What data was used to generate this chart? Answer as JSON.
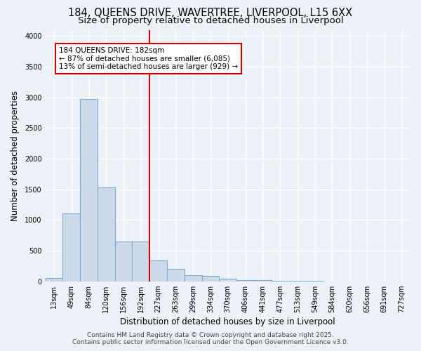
{
  "title_line1": "184, QUEENS DRIVE, WAVERTREE, LIVERPOOL, L15 6XX",
  "title_line2": "Size of property relative to detached houses in Liverpool",
  "xlabel": "Distribution of detached houses by size in Liverpool",
  "ylabel": "Number of detached properties",
  "categories": [
    "13sqm",
    "49sqm",
    "84sqm",
    "120sqm",
    "156sqm",
    "192sqm",
    "227sqm",
    "263sqm",
    "299sqm",
    "334sqm",
    "370sqm",
    "406sqm",
    "441sqm",
    "477sqm",
    "513sqm",
    "549sqm",
    "584sqm",
    "620sqm",
    "656sqm",
    "691sqm",
    "727sqm"
  ],
  "values": [
    55,
    1110,
    2970,
    1530,
    650,
    650,
    340,
    205,
    105,
    90,
    40,
    25,
    15,
    10,
    5,
    3,
    2,
    1,
    1,
    0,
    0
  ],
  "bar_color": "#ccd9e8",
  "bar_edge_color": "#7aaad0",
  "vline_x": 5.5,
  "vline_color": "#cc0000",
  "annotation_text": "184 QUEENS DRIVE: 182sqm\n← 87% of detached houses are smaller (6,085)\n13% of semi-detached houses are larger (929) →",
  "annotation_box_color": "white",
  "annotation_box_edge": "#cc0000",
  "ylim": [
    0,
    4100
  ],
  "yticks": [
    0,
    500,
    1000,
    1500,
    2000,
    2500,
    3000,
    3500,
    4000
  ],
  "bg_color": "#eef2f8",
  "plot_bg_color": "#eef2f8",
  "grid_color": "white",
  "footer_line1": "Contains HM Land Registry data © Crown copyright and database right 2025.",
  "footer_line2": "Contains public sector information licensed under the Open Government Licence v3.0.",
  "title_fontsize": 10.5,
  "subtitle_fontsize": 9.5,
  "axis_label_fontsize": 8.5,
  "tick_fontsize": 7,
  "annotation_fontsize": 7.5,
  "footer_fontsize": 6.5
}
